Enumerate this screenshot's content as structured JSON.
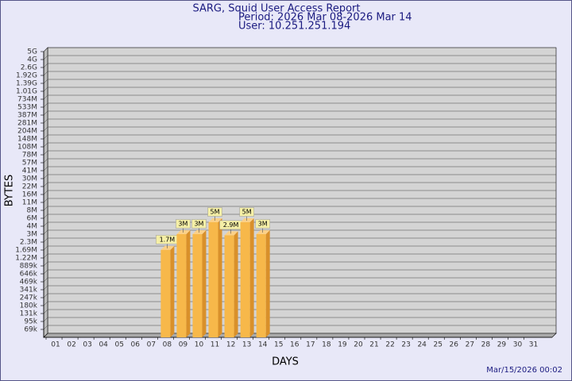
{
  "chart_data": {
    "type": "bar",
    "title": "SARG, Squid User Access Report",
    "subtitle": "Period: 2026 Mar 08-2026 Mar 14",
    "user": "User: 10.251.251.194",
    "x_label": "DAYS",
    "y_label": "BYTES",
    "footer": "Mar/15/2026 00:02",
    "categories": [
      "01",
      "02",
      "03",
      "04",
      "05",
      "06",
      "07",
      "08",
      "09",
      "10",
      "11",
      "12",
      "13",
      "14",
      "15",
      "16",
      "17",
      "18",
      "19",
      "20",
      "21",
      "22",
      "23",
      "24",
      "25",
      "26",
      "27",
      "28",
      "29",
      "30",
      "31"
    ],
    "values": [
      null,
      null,
      null,
      null,
      null,
      null,
      null,
      1700000,
      3000000,
      3000000,
      5000000,
      2900000,
      5000000,
      3000000,
      null,
      null,
      null,
      null,
      null,
      null,
      null,
      null,
      null,
      null,
      null,
      null,
      null,
      null,
      null,
      null,
      null
    ],
    "value_labels": [
      null,
      null,
      null,
      null,
      null,
      null,
      null,
      "1.7M",
      "3M",
      "3M",
      "5M",
      "2.9M",
      "5M",
      "3M",
      null,
      null,
      null,
      null,
      null,
      null,
      null,
      null,
      null,
      null,
      null,
      null,
      null,
      null,
      null,
      null,
      null
    ],
    "color": "#f7b84a",
    "ylim": [
      0,
      5000000000
    ],
    "yticks": [
      {
        "value": 69000,
        "label": "69k"
      },
      {
        "value": 95000,
        "label": "95k"
      },
      {
        "value": 131000,
        "label": "131k"
      },
      {
        "value": 180000,
        "label": "180k"
      },
      {
        "value": 247000,
        "label": "247k"
      },
      {
        "value": 341000,
        "label": "341k"
      },
      {
        "value": 469000,
        "label": "469k"
      },
      {
        "value": 646000,
        "label": "646k"
      },
      {
        "value": 889000,
        "label": "889k"
      },
      {
        "value": 1220000,
        "label": "1.22M"
      },
      {
        "value": 1690000,
        "label": "1.69M"
      },
      {
        "value": 2300000,
        "label": "2.3M"
      },
      {
        "value": 3000000,
        "label": "3M"
      },
      {
        "value": 4000000,
        "label": "4M"
      },
      {
        "value": 6000000,
        "label": "6M"
      },
      {
        "value": 8000000,
        "label": "8M"
      },
      {
        "value": 11000000,
        "label": "11M"
      },
      {
        "value": 16000000,
        "label": "16M"
      },
      {
        "value": 22000000,
        "label": "22M"
      },
      {
        "value": 30000000,
        "label": "30M"
      },
      {
        "value": 41000000,
        "label": "41M"
      },
      {
        "value": 57000000,
        "label": "57M"
      },
      {
        "value": 78000000,
        "label": "78M"
      },
      {
        "value": 108000000,
        "label": "108M"
      },
      {
        "value": 148000000,
        "label": "148M"
      },
      {
        "value": 204000000,
        "label": "204M"
      },
      {
        "value": 281000000,
        "label": "281M"
      },
      {
        "value": 387000000,
        "label": "387M"
      },
      {
        "value": 533000000,
        "label": "533M"
      },
      {
        "value": 734000000,
        "label": "734M"
      },
      {
        "value": 1010000000,
        "label": "1.01G"
      },
      {
        "value": 1390000000,
        "label": "1.39G"
      },
      {
        "value": 1920000000,
        "label": "1.92G"
      },
      {
        "value": 2600000000,
        "label": "2.6G"
      },
      {
        "value": 4000000000,
        "label": "4G"
      },
      {
        "value": 5000000000,
        "label": "5G"
      }
    ],
    "grid": true
  }
}
